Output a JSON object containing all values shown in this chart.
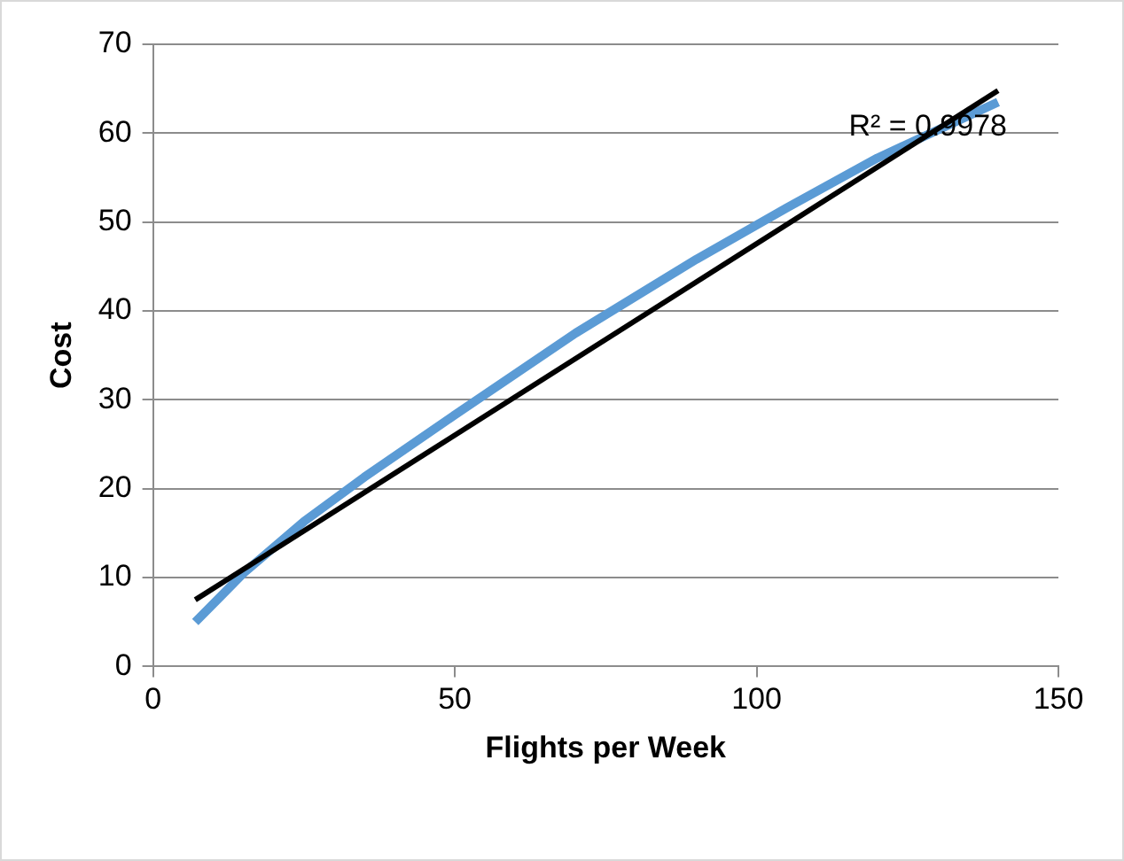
{
  "chart_data": {
    "type": "line",
    "xlabel": "Flights per Week",
    "ylabel": "Cost",
    "x": [
      7,
      15,
      25,
      35,
      50,
      70,
      90,
      105,
      120,
      140
    ],
    "series": [
      {
        "color": "#5b9bd5",
        "values": [
          5,
          10.5,
          16.3,
          21.3,
          28.3,
          37.5,
          45.8,
          51.6,
          57.2,
          63.5
        ]
      },
      {
        "type": "line",
        "color": "#000000",
        "x": [
          7,
          140
        ],
        "values": [
          7.5,
          64.8
        ]
      }
    ],
    "xlim": [
      0,
      150
    ],
    "xticks": [
      0,
      50,
      100,
      150
    ],
    "ylim": [
      0,
      70
    ],
    "yticks": [
      0,
      10,
      20,
      30,
      40,
      50,
      60,
      70
    ],
    "grid": "y",
    "legend": false,
    "marker": "none",
    "line_style": "solid",
    "annotations": [
      "R² = 0.9978"
    ]
  }
}
